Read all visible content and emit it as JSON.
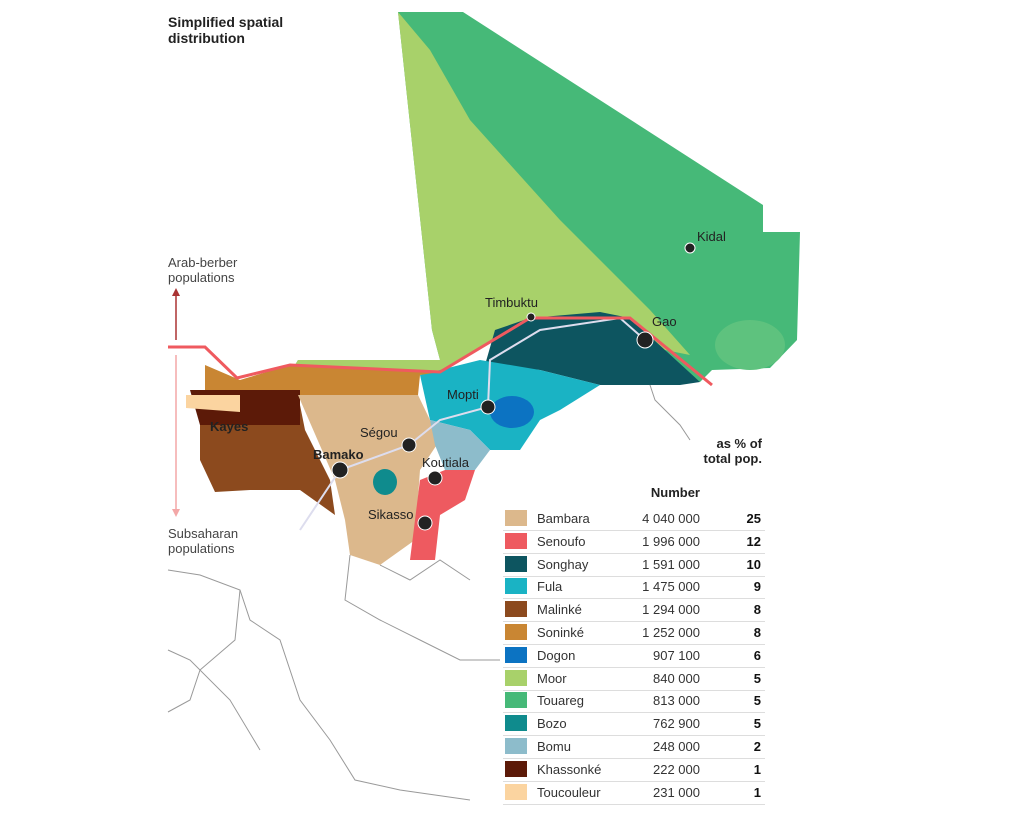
{
  "title": "Simplified spatial distribution",
  "axis": {
    "top": "Arab-berber populations",
    "bottom": "Subsaharan populations"
  },
  "cities": {
    "kidal": "Kidal",
    "timbuktu": "Timbuktu",
    "gao": "Gao",
    "mopti": "Mopti",
    "segou": "Ségou",
    "bamako": "Bamako",
    "kayes": "Kayes",
    "koutiala": "Koutiala",
    "sikasso": "Sikasso"
  },
  "legend": {
    "header_number": "Number",
    "header_pct": "as % of total pop.",
    "rows": [
      {
        "name": "Bambara",
        "color": "#dcb88c",
        "number": "4 040 000",
        "pct": 25
      },
      {
        "name": "Senoufo",
        "color": "#ee5a60",
        "number": "1 996 000",
        "pct": 12
      },
      {
        "name": "Songhay",
        "color": "#0d5560",
        "number": "1 591 000",
        "pct": 10
      },
      {
        "name": "Fula",
        "color": "#1ab3c4",
        "number": "1 475 000",
        "pct": 9
      },
      {
        "name": "Malinké",
        "color": "#8c4a1e",
        "number": "1 294 000",
        "pct": 8
      },
      {
        "name": "Soninké",
        "color": "#c98633",
        "number": "1 252 000",
        "pct": 8
      },
      {
        "name": "Dogon",
        "color": "#0c73c2",
        "number": "907 100",
        "pct": 6
      },
      {
        "name": "Moor",
        "color": "#a8d16a",
        "number": "840 000",
        "pct": 5
      },
      {
        "name": "Touareg",
        "color": "#46b978",
        "number": "813 000",
        "pct": 5
      },
      {
        "name": "Bozo",
        "color": "#0f8b8d",
        "number": "762 900",
        "pct": 5
      },
      {
        "name": "Bomu",
        "color": "#8dbccb",
        "number": "248 000",
        "pct": 2
      },
      {
        "name": "Khassonké",
        "color": "#5c1a08",
        "number": "222 000",
        "pct": 1
      },
      {
        "name": "Toucouleur",
        "color": "#fbd4a0",
        "number": "231 000",
        "pct": 1
      }
    ]
  }
}
